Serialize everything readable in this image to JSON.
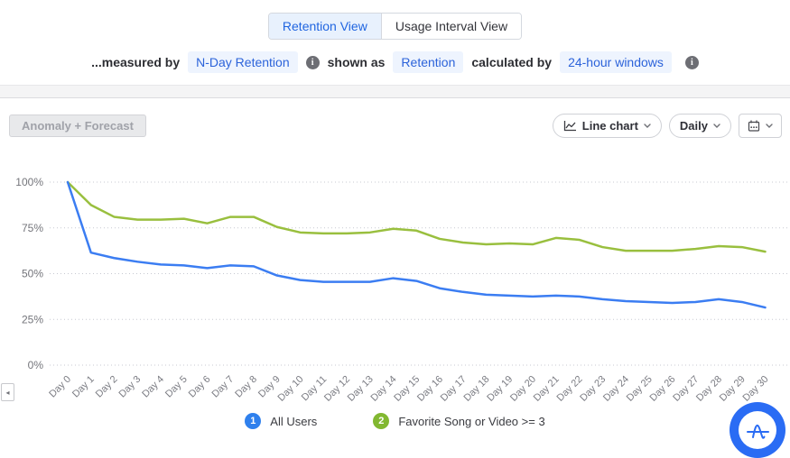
{
  "view_toggle": {
    "options": [
      {
        "label": "Retention View",
        "selected": true
      },
      {
        "label": "Usage Interval View",
        "selected": false
      }
    ]
  },
  "measured_row": {
    "prefix": "...measured by",
    "measure_pill": "N-Day Retention",
    "shown_as_label": "shown as",
    "shown_as_pill": "Retention",
    "calculated_by_label": "calculated by",
    "calculated_pill": "24-hour windows"
  },
  "toolbar": {
    "anomaly_button": "Anomaly + Forecast",
    "chart_type_button": "Line chart",
    "interval_button": "Daily"
  },
  "icons": {
    "info_glyph": "i",
    "scroll_left_glyph": "◂"
  },
  "chart_data": {
    "type": "line",
    "categories": [
      "Day 0",
      "Day 1",
      "Day 2",
      "Day 3",
      "Day 4",
      "Day 5",
      "Day 6",
      "Day 7",
      "Day 8",
      "Day 9",
      "Day 10",
      "Day 11",
      "Day 12",
      "Day 13",
      "Day 14",
      "Day 15",
      "Day 16",
      "Day 17",
      "Day 18",
      "Day 19",
      "Day 20",
      "Day 21",
      "Day 22",
      "Day 23",
      "Day 24",
      "Day 25",
      "Day 26",
      "Day 27",
      "Day 28",
      "Day 29",
      "Day 30"
    ],
    "yticks": [
      "0%",
      "25%",
      "50%",
      "75%",
      "100%"
    ],
    "ylim": [
      0,
      100
    ],
    "grid": "dotted-horizontal",
    "legend_position": "bottom",
    "series": [
      {
        "name": "All Users",
        "color": "#3b7df2",
        "values": [
          100,
          61.5,
          58.5,
          56.5,
          55,
          54.5,
          53,
          54.5,
          54,
          49,
          46.5,
          45.5,
          45.5,
          45.5,
          47.5,
          46,
          42,
          40,
          38.5,
          38,
          37.5,
          38,
          37.5,
          36,
          35,
          34.5,
          34,
          34.5,
          36,
          34.5,
          31.5
        ]
      },
      {
        "name": "Favorite Song or Video >= 3",
        "color": "#99bf3e",
        "values": [
          100,
          87.5,
          81,
          79.5,
          79.5,
          80,
          77.5,
          81,
          81,
          75.5,
          72.5,
          72,
          72,
          72.5,
          74.5,
          73.5,
          69,
          67,
          66,
          66.5,
          66,
          69.5,
          68.5,
          64.5,
          62.5,
          62.5,
          62.5,
          63.5,
          65,
          64.5,
          62
        ]
      }
    ]
  },
  "legend": {
    "items": [
      {
        "num": "1",
        "label": "All Users",
        "color": "#2f80ed"
      },
      {
        "num": "2",
        "label": "Favorite Song or Video >= 3",
        "color": "#82b831"
      }
    ]
  },
  "colors": {
    "accent_blue": "#2065e0",
    "pill_bg": "#eef4fe",
    "pill_text": "#2c63da",
    "logo_blue": "#2a6cf4",
    "grid_line": "#c7c9d1"
  }
}
